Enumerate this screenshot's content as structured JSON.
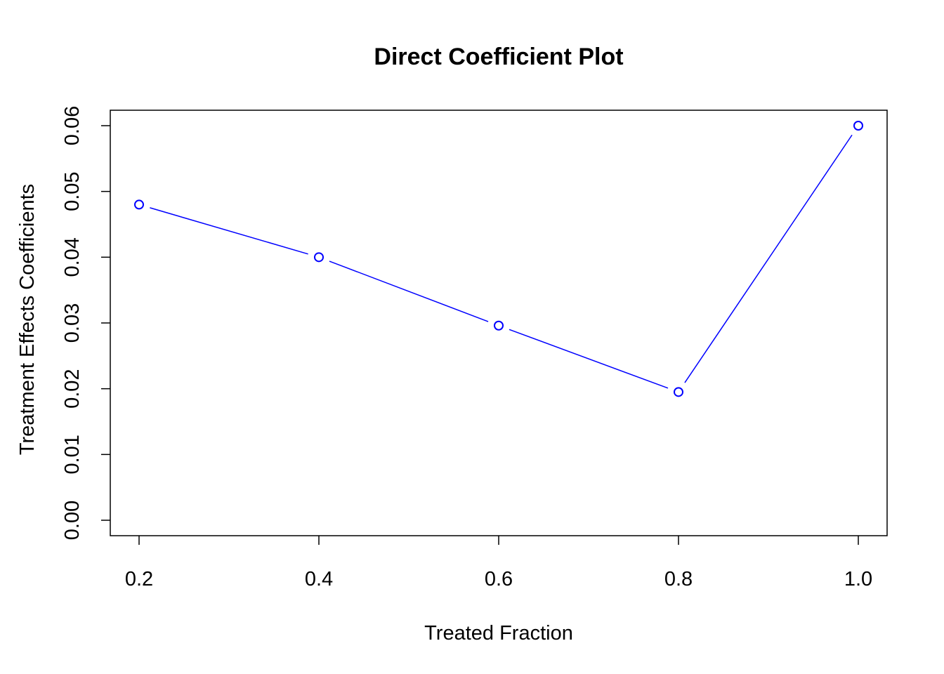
{
  "chart_data": {
    "type": "line",
    "title": "Direct Coefficient Plot",
    "xlabel": "Treated Fraction",
    "ylabel": "Treatment Effects Coefficients",
    "xlim": [
      0.2,
      1.0
    ],
    "ylim": [
      0.0,
      0.06
    ],
    "x_ticks": [
      "0.2",
      "0.4",
      "0.6",
      "0.8",
      "1.0"
    ],
    "y_ticks": [
      "0.00",
      "0.01",
      "0.02",
      "0.03",
      "0.04",
      "0.05",
      "0.06"
    ],
    "grid": false,
    "legend": "none",
    "marker": "open-circle",
    "line_style": "b",
    "series": [
      {
        "color": "#0000ff",
        "x": [
          0.2,
          0.4,
          0.6,
          0.8,
          1.0
        ],
        "values": [
          0.048,
          0.04,
          0.0296,
          0.0195,
          0.06
        ]
      }
    ]
  }
}
